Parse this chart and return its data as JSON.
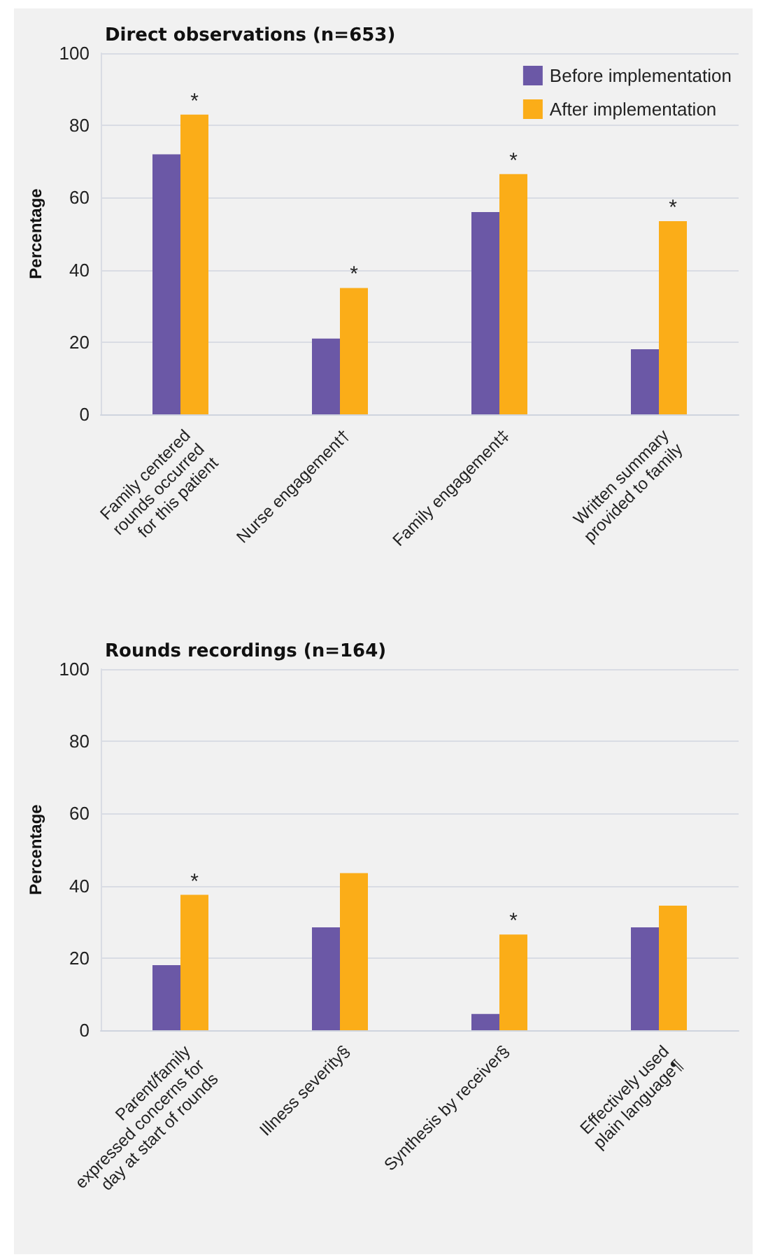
{
  "chart_data": [
    {
      "type": "bar",
      "title": "Direct observations (n=653)",
      "ylabel": "Percentage",
      "categories": [
        "Family centered\nrounds occurred\nfor this patient",
        "Nurse engagement†",
        "Family engagement‡",
        "Written summary\nprovided to family"
      ],
      "series": [
        {
          "name": "Before implementation",
          "color": "#6b58a6",
          "values": [
            72,
            21,
            56,
            18
          ]
        },
        {
          "name": "After implementation",
          "color": "#fbad18",
          "values": [
            83,
            35,
            66.5,
            53.5
          ]
        }
      ],
      "ylim": [
        0,
        100
      ],
      "yticks": [
        0,
        20,
        40,
        60,
        80,
        100
      ],
      "grid": "y",
      "legend": "top right",
      "annotations": [
        {
          "text": "*",
          "x": "Family centered\nrounds occurred\nfor this patient",
          "y": 83
        },
        {
          "text": "*",
          "x": "Nurse engagement†",
          "y": 35
        },
        {
          "text": "*",
          "x": "Family engagement‡",
          "y": 66.5
        },
        {
          "text": "*",
          "x": "Written summary\nprovided to family",
          "y": 53.5
        }
      ]
    },
    {
      "type": "bar",
      "title": "Rounds recordings (n=164)",
      "ylabel": "Percentage",
      "categories": [
        "Parent/family\nexpressed concerns for\nday at start of rounds",
        "Illness severity§",
        "Synthesis by receiver§",
        "Effectively used\nplain language¶"
      ],
      "series": [
        {
          "color": "#6b58a6",
          "values": [
            18,
            28.5,
            4.5,
            28.5
          ]
        },
        {
          "color": "#fbad18",
          "values": [
            37.5,
            43.5,
            26.5,
            34.5
          ]
        }
      ],
      "ylim": [
        0,
        100
      ],
      "yticks": [
        0,
        20,
        40,
        60,
        80,
        100
      ],
      "grid": "y",
      "annotations": [
        {
          "text": "*",
          "x": "Parent/family\nexpressed concerns for\nday at start of rounds",
          "y": 37.5
        },
        {
          "text": "*",
          "x": "Synthesis by receiver§",
          "y": 26.5
        }
      ]
    }
  ]
}
